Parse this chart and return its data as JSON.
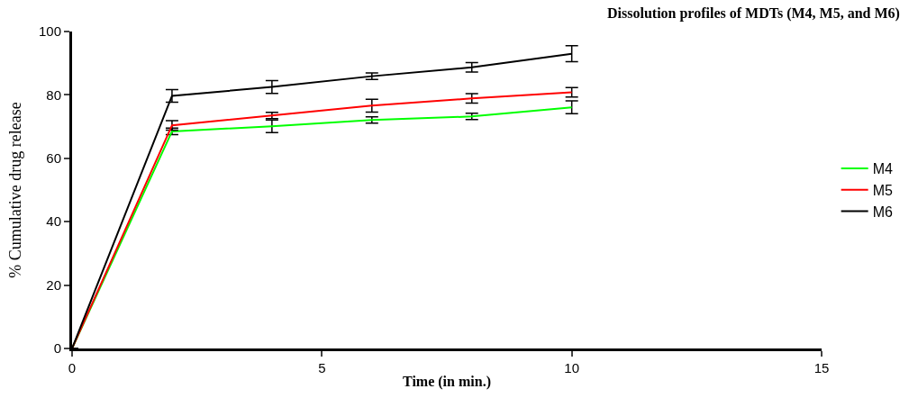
{
  "chart_data": {
    "type": "line",
    "title": "Dissolution profiles of MDTs (M4, M5, and M6)",
    "xlabel": "Time (in min.)",
    "ylabel": "% Cumulative drug release",
    "x": [
      0,
      2,
      4,
      6,
      8,
      10
    ],
    "series": [
      {
        "name": "M4",
        "color": "#00ff00",
        "values": [
          0,
          68.5,
          70.1,
          72.1,
          73.2,
          76.1
        ],
        "errors": [
          null,
          1,
          2,
          1,
          1,
          2
        ]
      },
      {
        "name": "M5",
        "color": "#ff0000",
        "values": [
          0,
          70.4,
          73.5,
          76.6,
          78.9,
          80.8
        ],
        "errors": [
          null,
          1.5,
          1,
          2,
          1.5,
          1.5
        ]
      },
      {
        "name": "M6",
        "color": "#000000",
        "values": [
          0,
          79.7,
          82.5,
          85.9,
          88.7,
          93.0
        ],
        "errors": [
          null,
          2,
          2,
          1,
          1.5,
          2.5
        ]
      }
    ],
    "xlim": [
      0,
      15
    ],
    "xticks": [
      0,
      5,
      10,
      15
    ],
    "ylim": [
      0,
      100
    ],
    "yticks": [
      0,
      20,
      40,
      60,
      80,
      100
    ],
    "legend": "right",
    "line_style": "solid"
  }
}
